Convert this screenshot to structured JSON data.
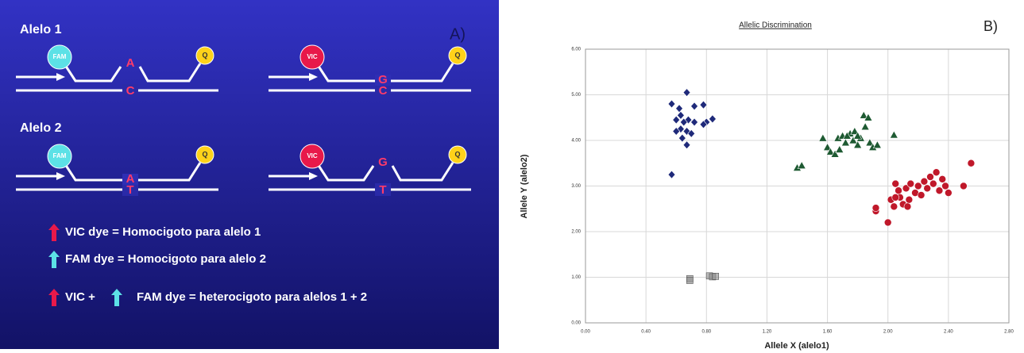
{
  "panel_a": {
    "label": "A)",
    "alleles": [
      {
        "title": "Alelo 1",
        "probes": [
          {
            "dye": "FAM",
            "probe_base": "A",
            "template_base": "C",
            "quencher": "Q"
          },
          {
            "dye": "VIC",
            "probe_base": "G",
            "template_base": "C",
            "quencher": "Q"
          }
        ]
      },
      {
        "title": "Alelo 2",
        "probes": [
          {
            "dye": "FAM",
            "probe_base": "A",
            "template_base": "T",
            "quencher": "Q"
          },
          {
            "dye": "VIC",
            "probe_base": "G",
            "template_base": "T",
            "quencher": "Q"
          }
        ]
      }
    ],
    "legend": [
      [
        "VIC dye = Homocigoto para alelo 1"
      ],
      [
        "FAM dye = Homocigoto para alelo 2"
      ],
      [
        "VIC +",
        "FAM dye = heterocigoto para alelos 1 + 2"
      ]
    ]
  },
  "chart_data": {
    "type": "scatter",
    "title": "Allelic Discrimination",
    "panel_label": "B)",
    "xlabel": "Allele X (alelo1)",
    "ylabel": "Allele Y (alelo2)",
    "xlim": [
      0,
      2.8
    ],
    "ylim": [
      0,
      6
    ],
    "xticks": [
      {
        "value": 0,
        "label": "0.00"
      },
      {
        "value": 0.4,
        "label": "0.40"
      },
      {
        "value": 0.8,
        "label": "0.80"
      },
      {
        "value": 1.2,
        "label": "1.20"
      },
      {
        "value": 1.6,
        "label": "1.60"
      },
      {
        "value": 2.0,
        "label": "2.00"
      },
      {
        "value": 2.4,
        "label": "2.40"
      },
      {
        "value": 2.8,
        "label": "2.80"
      }
    ],
    "yticks": [
      {
        "value": 0,
        "label": "0.00"
      },
      {
        "value": 1,
        "label": "1.00"
      },
      {
        "value": 2,
        "label": "2.00"
      },
      {
        "value": 3,
        "label": "3.00"
      },
      {
        "value": 4,
        "label": "4.00"
      },
      {
        "value": 5,
        "label": "5.00"
      },
      {
        "value": 6,
        "label": "6.00"
      }
    ],
    "grid": true,
    "series": [
      {
        "color": "#1f2a7a",
        "marker": "diamond",
        "x": [
          0.57,
          0.62,
          0.67,
          0.72,
          0.78,
          0.63,
          0.68,
          0.72,
          0.65,
          0.8,
          0.84,
          0.6,
          0.78,
          0.63,
          0.67,
          0.7,
          0.64,
          0.67,
          0.6,
          0.57
        ],
        "values": [
          4.8,
          4.7,
          5.05,
          4.75,
          4.78,
          4.55,
          4.45,
          4.4,
          4.4,
          4.4,
          4.47,
          4.45,
          4.35,
          4.25,
          4.2,
          4.15,
          4.05,
          3.9,
          4.2,
          3.25
        ]
      },
      {
        "color": "#1e5a32",
        "marker": "triangle",
        "x": [
          1.4,
          1.43,
          1.57,
          1.6,
          1.62,
          1.65,
          1.67,
          1.7,
          1.72,
          1.75,
          1.77,
          1.78,
          1.8,
          1.82,
          1.84,
          1.87,
          1.85,
          1.88,
          1.9,
          1.93,
          2.04,
          1.73,
          1.68,
          1.8
        ],
        "values": [
          3.4,
          3.45,
          4.05,
          3.85,
          3.75,
          3.7,
          4.05,
          4.1,
          3.95,
          4.15,
          4.0,
          4.2,
          3.9,
          4.05,
          4.55,
          4.5,
          4.3,
          3.95,
          3.85,
          3.9,
          4.12,
          4.1,
          3.8,
          4.1
        ]
      },
      {
        "color": "#c0182a",
        "marker": "circle",
        "x": [
          1.92,
          1.92,
          2.0,
          2.02,
          2.04,
          2.05,
          2.07,
          2.08,
          2.1,
          2.12,
          2.14,
          2.15,
          2.18,
          2.2,
          2.22,
          2.24,
          2.26,
          2.28,
          2.3,
          2.32,
          2.34,
          2.36,
          2.38,
          2.4,
          2.5,
          2.55,
          2.13,
          2.05
        ],
        "values": [
          2.45,
          2.52,
          2.2,
          2.7,
          2.55,
          3.05,
          2.9,
          2.75,
          2.6,
          2.95,
          2.7,
          3.05,
          2.85,
          3.0,
          2.8,
          3.1,
          2.95,
          3.2,
          3.05,
          3.3,
          2.9,
          3.15,
          3.0,
          2.85,
          3.0,
          3.5,
          2.55,
          2.75
        ]
      },
      {
        "color": "#8c8c8c",
        "marker": "square",
        "x": [
          0.69,
          0.69,
          0.82,
          0.84,
          0.86
        ],
        "values": [
          0.97,
          0.93,
          1.03,
          1.01,
          1.02
        ]
      }
    ]
  }
}
